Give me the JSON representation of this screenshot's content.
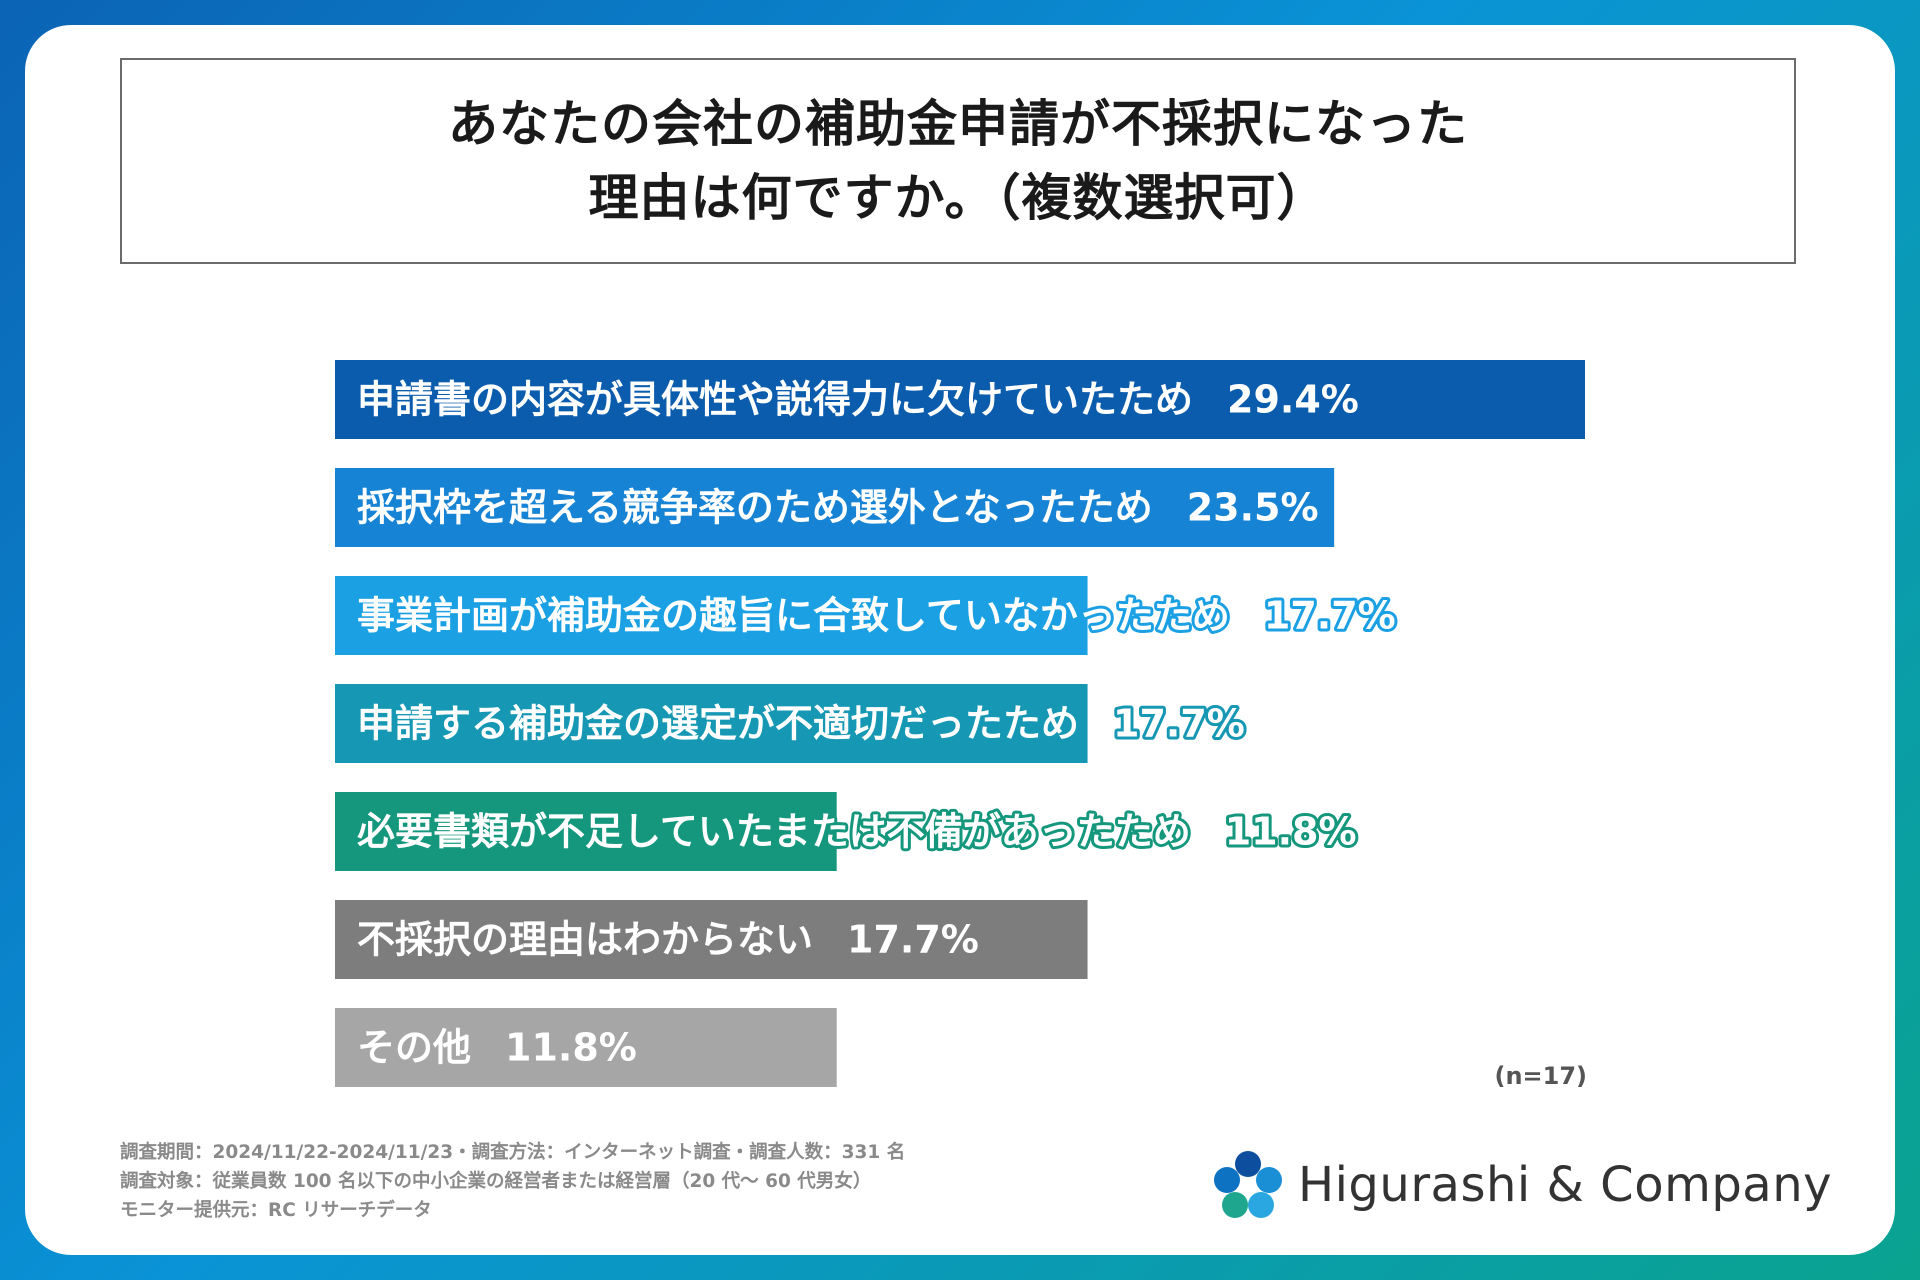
{
  "title": {
    "line1": "あなたの会社の補助金申請が不採択になった",
    "line2": "理由は何ですか。（複数選択可）"
  },
  "chart_data": {
    "type": "bar",
    "orientation": "horizontal",
    "title": "あなたの会社の補助金申請が不採択になった理由は何ですか。（複数選択可）",
    "categories": [
      "申請書の内容が具体性や説得力に欠けていたため",
      "採択枠を超える競争率のため選外となったため",
      "事業計画が補助金の趣旨に合致していなかったため",
      "申請する補助金の選定が不適切だったため",
      "必要書類が不足していたまたは不備があったため",
      "不採択の理由はわからない",
      "その他"
    ],
    "values": [
      29.4,
      23.5,
      17.7,
      17.7,
      11.8,
      17.7,
      11.8
    ],
    "value_labels": [
      "29.4%",
      "23.5%",
      "17.7%",
      "17.7%",
      "11.8%",
      "17.7%",
      "11.8%"
    ],
    "colors": [
      "#0b5cad",
      "#1683d4",
      "#1aa0e3",
      "#1698b4",
      "#14977c",
      "#7d7d7d",
      "#a6a6a6"
    ],
    "xlim": [
      0,
      29.4
    ],
    "grid": false,
    "legend": "none"
  },
  "note": "(n=17)",
  "footnotes": [
    "調査期間：2024/11/22-2024/11/23・調査方法：インターネット調査・調査人数：331 名",
    "調査対象：従業員数 100 名以下の中小企業の経営者または経営層（20 代～ 60 代男女）",
    "モニター提供元：RC リサーチデータ"
  ],
  "logo": {
    "text": "Higurashi & Company",
    "icon": "flower-logo-icon"
  }
}
